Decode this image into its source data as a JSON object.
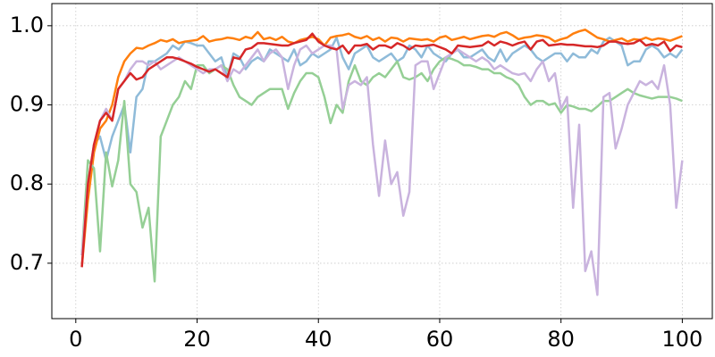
{
  "chart_data": {
    "type": "line",
    "grid": true,
    "x": [
      1,
      2,
      3,
      4,
      5,
      6,
      7,
      8,
      9,
      10,
      11,
      12,
      13,
      14,
      15,
      16,
      17,
      18,
      19,
      20,
      21,
      22,
      23,
      24,
      25,
      26,
      27,
      28,
      29,
      30,
      31,
      32,
      33,
      34,
      35,
      36,
      37,
      38,
      39,
      40,
      41,
      42,
      43,
      44,
      45,
      46,
      47,
      48,
      49,
      50,
      51,
      52,
      53,
      54,
      55,
      56,
      57,
      58,
      59,
      60,
      61,
      62,
      63,
      64,
      65,
      66,
      67,
      68,
      69,
      70,
      71,
      72,
      73,
      74,
      75,
      76,
      77,
      78,
      79,
      80,
      81,
      82,
      83,
      84,
      85,
      86,
      87,
      88,
      89,
      90,
      91,
      92,
      93,
      94,
      95,
      96,
      97,
      98,
      99,
      100
    ],
    "xlim": [
      -3.95,
      104.95
    ],
    "xticks": [
      0,
      20,
      40,
      60,
      80,
      100
    ],
    "ylim": [
      0.63,
      1.028
    ],
    "yticks": [
      0.7,
      0.8,
      0.9,
      {
        "value": 1,
        "label": "1.0"
      }
    ],
    "series": [
      {
        "color": "#8fbbd9",
        "values": [
          0.71,
          0.79,
          0.85,
          0.86,
          0.83,
          0.86,
          0.88,
          0.9,
          0.84,
          0.91,
          0.92,
          0.955,
          0.955,
          0.96,
          0.965,
          0.975,
          0.97,
          0.98,
          0.978,
          0.975,
          0.975,
          0.965,
          0.955,
          0.96,
          0.935,
          0.965,
          0.96,
          0.945,
          0.955,
          0.96,
          0.955,
          0.97,
          0.965,
          0.96,
          0.955,
          0.97,
          0.95,
          0.955,
          0.965,
          0.96,
          0.965,
          0.97,
          0.985,
          0.96,
          0.945,
          0.965,
          0.97,
          0.975,
          0.96,
          0.955,
          0.96,
          0.965,
          0.955,
          0.96,
          0.975,
          0.97,
          0.96,
          0.975,
          0.965,
          0.96,
          0.955,
          0.965,
          0.97,
          0.96,
          0.96,
          0.965,
          0.97,
          0.96,
          0.955,
          0.97,
          0.955,
          0.965,
          0.97,
          0.975,
          0.97,
          0.96,
          0.955,
          0.96,
          0.965,
          0.965,
          0.955,
          0.965,
          0.96,
          0.96,
          0.97,
          0.965,
          0.98,
          0.985,
          0.98,
          0.975,
          0.95,
          0.955,
          0.955,
          0.97,
          0.975,
          0.97,
          0.96,
          0.965,
          0.96,
          0.97
        ]
      },
      {
        "color": "#ff7f0e",
        "values": [
          0.696,
          0.78,
          0.84,
          0.87,
          0.88,
          0.9,
          0.935,
          0.955,
          0.965,
          0.972,
          0.971,
          0.975,
          0.978,
          0.982,
          0.98,
          0.983,
          0.978,
          0.98,
          0.981,
          0.982,
          0.987,
          0.98,
          0.982,
          0.983,
          0.985,
          0.984,
          0.982,
          0.986,
          0.984,
          0.992,
          0.983,
          0.985,
          0.982,
          0.986,
          0.98,
          0.978,
          0.982,
          0.984,
          0.986,
          0.983,
          0.975,
          0.985,
          0.987,
          0.988,
          0.99,
          0.986,
          0.984,
          0.987,
          0.982,
          0.985,
          0.98,
          0.985,
          0.984,
          0.98,
          0.984,
          0.983,
          0.982,
          0.983,
          0.98,
          0.985,
          0.987,
          0.982,
          0.984,
          0.986,
          0.983,
          0.985,
          0.987,
          0.988,
          0.986,
          0.99,
          0.992,
          0.988,
          0.983,
          0.985,
          0.986,
          0.988,
          0.987,
          0.985,
          0.98,
          0.983,
          0.985,
          0.99,
          0.993,
          0.995,
          0.99,
          0.985,
          0.983,
          0.98,
          0.982,
          0.984,
          0.98,
          0.983,
          0.982,
          0.985,
          0.982,
          0.984,
          0.983,
          0.981,
          0.984,
          0.987
        ]
      },
      {
        "color": "#95cf95",
        "values": [
          0.71,
          0.83,
          0.82,
          0.715,
          0.84,
          0.797,
          0.83,
          0.905,
          0.8,
          0.79,
          0.745,
          0.77,
          0.677,
          0.86,
          0.88,
          0.9,
          0.91,
          0.93,
          0.92,
          0.95,
          0.95,
          0.94,
          0.945,
          0.95,
          0.945,
          0.925,
          0.91,
          0.905,
          0.9,
          0.91,
          0.915,
          0.92,
          0.92,
          0.92,
          0.895,
          0.915,
          0.93,
          0.94,
          0.94,
          0.935,
          0.91,
          0.877,
          0.9,
          0.89,
          0.93,
          0.95,
          0.93,
          0.925,
          0.935,
          0.94,
          0.935,
          0.945,
          0.955,
          0.935,
          0.932,
          0.935,
          0.94,
          0.93,
          0.945,
          0.955,
          0.96,
          0.958,
          0.955,
          0.95,
          0.95,
          0.948,
          0.945,
          0.945,
          0.94,
          0.94,
          0.935,
          0.932,
          0.925,
          0.91,
          0.9,
          0.905,
          0.905,
          0.9,
          0.902,
          0.89,
          0.9,
          0.898,
          0.895,
          0.895,
          0.892,
          0.898,
          0.905,
          0.905,
          0.91,
          0.915,
          0.92,
          0.915,
          0.912,
          0.91,
          0.908,
          0.91,
          0.91,
          0.91,
          0.908,
          0.905
        ]
      },
      {
        "color": "#c9b3de",
        "values": [
          0.71,
          0.8,
          0.85,
          0.88,
          0.895,
          0.88,
          0.92,
          0.93,
          0.945,
          0.955,
          0.955,
          0.95,
          0.955,
          0.945,
          0.95,
          0.955,
          0.96,
          0.955,
          0.95,
          0.945,
          0.94,
          0.945,
          0.945,
          0.95,
          0.93,
          0.945,
          0.94,
          0.95,
          0.96,
          0.97,
          0.955,
          0.965,
          0.97,
          0.96,
          0.92,
          0.95,
          0.97,
          0.975,
          0.965,
          0.97,
          0.975,
          0.975,
          0.97,
          0.895,
          0.925,
          0.93,
          0.925,
          0.935,
          0.85,
          0.785,
          0.855,
          0.8,
          0.815,
          0.76,
          0.79,
          0.95,
          0.955,
          0.955,
          0.92,
          0.94,
          0.96,
          0.965,
          0.97,
          0.965,
          0.96,
          0.955,
          0.96,
          0.955,
          0.945,
          0.95,
          0.945,
          0.94,
          0.938,
          0.94,
          0.93,
          0.945,
          0.955,
          0.93,
          0.94,
          0.895,
          0.91,
          0.77,
          0.875,
          0.69,
          0.715,
          0.66,
          0.91,
          0.915,
          0.845,
          0.87,
          0.9,
          0.915,
          0.93,
          0.925,
          0.93,
          0.92,
          0.95,
          0.9,
          0.77,
          0.83
        ]
      },
      {
        "color": "#d62728",
        "values": [
          0.695,
          0.8,
          0.85,
          0.88,
          0.89,
          0.88,
          0.92,
          0.93,
          0.94,
          0.932,
          0.935,
          0.945,
          0.95,
          0.955,
          0.96,
          0.96,
          0.958,
          0.955,
          0.952,
          0.948,
          0.945,
          0.942,
          0.945,
          0.94,
          0.935,
          0.96,
          0.958,
          0.97,
          0.972,
          0.978,
          0.978,
          0.977,
          0.976,
          0.975,
          0.975,
          0.978,
          0.98,
          0.982,
          0.99,
          0.98,
          0.975,
          0.972,
          0.97,
          0.975,
          0.965,
          0.975,
          0.975,
          0.977,
          0.97,
          0.975,
          0.975,
          0.972,
          0.978,
          0.975,
          0.97,
          0.975,
          0.974,
          0.975,
          0.976,
          0.973,
          0.97,
          0.965,
          0.975,
          0.974,
          0.973,
          0.974,
          0.975,
          0.98,
          0.975,
          0.98,
          0.978,
          0.975,
          0.978,
          0.98,
          0.97,
          0.98,
          0.982,
          0.975,
          0.976,
          0.977,
          0.976,
          0.976,
          0.975,
          0.974,
          0.974,
          0.973,
          0.975,
          0.98,
          0.98,
          0.978,
          0.977,
          0.978,
          0.982,
          0.975,
          0.977,
          0.975,
          0.98,
          0.968,
          0.975,
          0.973
        ]
      }
    ]
  }
}
